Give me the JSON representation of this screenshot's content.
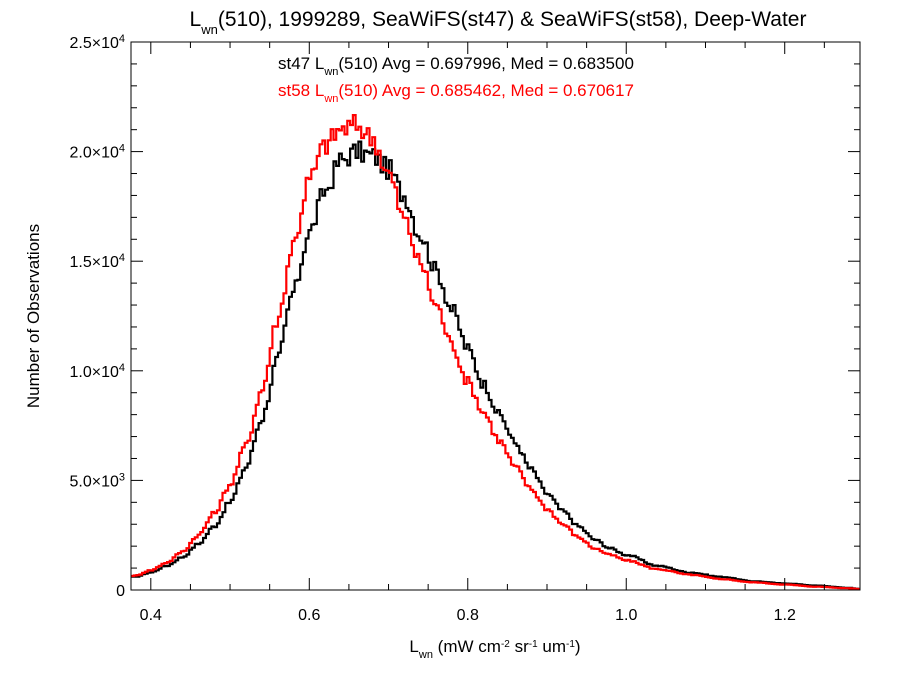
{
  "chart_data": {
    "type": "line",
    "title_parts": [
      "L",
      "wn",
      "(510), 1999289, SeaWiFS(st47) & SeaWiFS(st58), Deep-Water"
    ],
    "xlabel_parts": [
      "L",
      "wn",
      " (mW cm",
      "-2",
      " sr",
      "-1",
      " um",
      "-1",
      ")"
    ],
    "ylabel": "Number of Observations",
    "xlim": [
      0.375,
      1.295
    ],
    "ylim": [
      0,
      25000
    ],
    "x_ticks": [
      {
        "value": 0.4,
        "label": "0.4"
      },
      {
        "value": 0.6,
        "label": "0.6"
      },
      {
        "value": 0.8,
        "label": "0.8"
      },
      {
        "value": 1.0,
        "label": "1.0"
      },
      {
        "value": 1.2,
        "label": "1.2"
      }
    ],
    "y_ticks": [
      {
        "value": 0,
        "mantissa": "0",
        "exponent": ""
      },
      {
        "value": 5000,
        "mantissa": "5.0×10",
        "exponent": "3"
      },
      {
        "value": 10000,
        "mantissa": "1.0×10",
        "exponent": "4"
      },
      {
        "value": 15000,
        "mantissa": "1.5×10",
        "exponent": "4"
      },
      {
        "value": 20000,
        "mantissa": "2.0×10",
        "exponent": "4"
      },
      {
        "value": 25000,
        "mantissa": "2.5×10",
        "exponent": "4"
      }
    ],
    "series": [
      {
        "color": "#000000",
        "annotation": [
          "st47 L",
          "wn",
          "(510) Avg = 0.697996, Med = 0.683500"
        ],
        "x": [
          0.38,
          0.4,
          0.42,
          0.44,
          0.46,
          0.48,
          0.5,
          0.52,
          0.54,
          0.56,
          0.58,
          0.6,
          0.62,
          0.64,
          0.66,
          0.68,
          0.7,
          0.72,
          0.74,
          0.76,
          0.78,
          0.8,
          0.82,
          0.84,
          0.86,
          0.88,
          0.9,
          0.92,
          0.94,
          0.96,
          0.98,
          1.0,
          1.04,
          1.08,
          1.12,
          1.16,
          1.2,
          1.24,
          1.28,
          1.295
        ],
        "values": [
          600,
          800,
          1100,
          1500,
          2100,
          2900,
          4000,
          5600,
          7800,
          10500,
          13600,
          16300,
          18200,
          19600,
          20000,
          19800,
          19200,
          18000,
          16200,
          14600,
          12800,
          11000,
          9400,
          8000,
          6700,
          5500,
          4400,
          3600,
          2900,
          2300,
          1900,
          1600,
          1100,
          800,
          600,
          400,
          300,
          200,
          100,
          50
        ]
      },
      {
        "color": "#ff0000",
        "annotation": [
          "st58 L",
          "wn",
          "(510) Avg = 0.685462, Med = 0.670617"
        ],
        "x": [
          0.38,
          0.4,
          0.42,
          0.44,
          0.46,
          0.48,
          0.5,
          0.52,
          0.54,
          0.56,
          0.58,
          0.6,
          0.62,
          0.64,
          0.66,
          0.68,
          0.7,
          0.72,
          0.74,
          0.76,
          0.78,
          0.8,
          0.82,
          0.84,
          0.86,
          0.88,
          0.9,
          0.92,
          0.94,
          0.96,
          0.98,
          1.0,
          1.04,
          1.08,
          1.12,
          1.16,
          1.2,
          1.24,
          1.28,
          1.295
        ],
        "values": [
          650,
          900,
          1250,
          1750,
          2500,
          3500,
          4800,
          6600,
          9100,
          12300,
          15800,
          18700,
          20300,
          21000,
          21200,
          20600,
          19000,
          16900,
          14900,
          13000,
          11200,
          9500,
          8100,
          6800,
          5600,
          4600,
          3700,
          3000,
          2400,
          1900,
          1600,
          1350,
          950,
          700,
          500,
          350,
          250,
          150,
          80,
          40
        ]
      }
    ]
  }
}
